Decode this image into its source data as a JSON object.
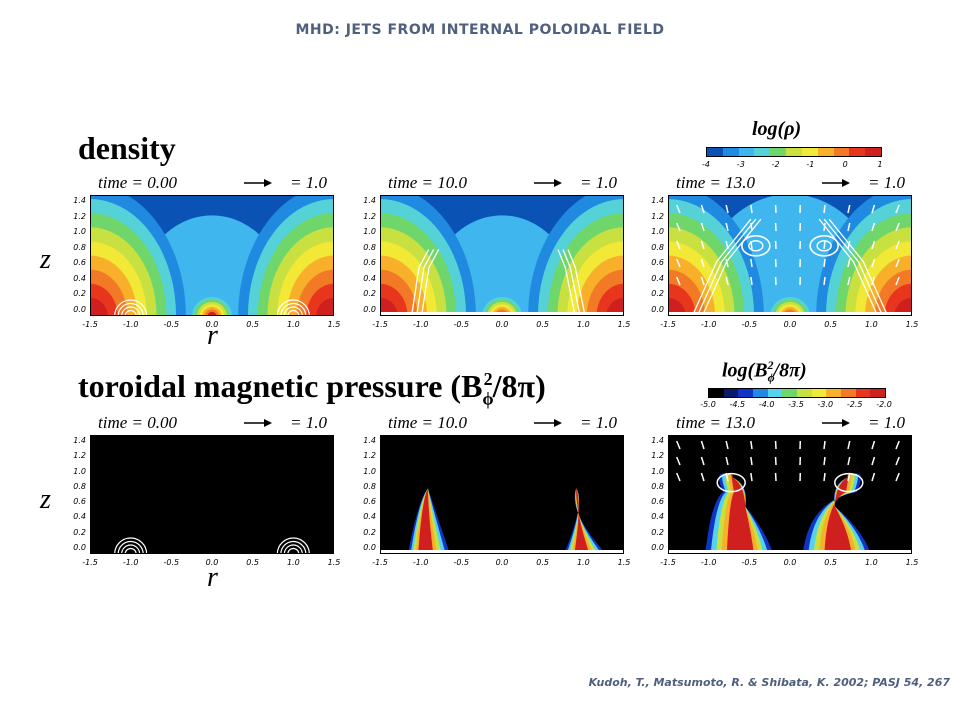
{
  "slide": {
    "title": "MHD: JETS FROM INTERNAL POLOIDAL FIELD",
    "citation": "Kudoh, T., Matsumoto, R. & Shibata, K. 2002; PASJ 54, 267"
  },
  "density": {
    "heading": "density",
    "colorbar": {
      "title": "log(ρ)",
      "ticks": [
        "-4",
        "-3",
        "-2",
        "-1",
        "0",
        "1"
      ],
      "colors": [
        "#0a52b3",
        "#1f8ae0",
        "#3fb6ee",
        "#55d2d8",
        "#6fd66c",
        "#c8e040",
        "#f2e836",
        "#f8b02a",
        "#f27a26",
        "#e8361e",
        "#cf1f1f"
      ]
    },
    "panels": [
      {
        "time": "time = 0.00",
        "scale": "= 1.0"
      },
      {
        "time": "time = 10.0",
        "scale": "= 1.0"
      },
      {
        "time": "time = 13.0",
        "scale": "= 1.0"
      }
    ]
  },
  "toroidal": {
    "heading": "toroidal magnetic pressure (B",
    "heading_sub": "ϕ",
    "heading_sup": "2",
    "heading_tail": "/8π)",
    "colorbar": {
      "title": "log(B",
      "title_sub": "ϕ",
      "title_sup": "2",
      "title_tail": "/8π)",
      "ticks": [
        "-5.0",
        "-4.5",
        "-4.0",
        "-3.5",
        "-3.0",
        "-2.5",
        "-2.0"
      ],
      "colors": [
        "#000000",
        "#0a1a6a",
        "#1034c8",
        "#1f8ae0",
        "#55d2ee",
        "#6fd66c",
        "#c8e040",
        "#f2e836",
        "#f8b02a",
        "#f27a26",
        "#e8361e",
        "#cf1f1f"
      ]
    },
    "panels": [
      {
        "time": "time = 0.00",
        "scale": "= 1.0"
      },
      {
        "time": "time = 10.0",
        "scale": "= 1.0"
      },
      {
        "time": "time = 13.0",
        "scale": "= 1.0"
      }
    ]
  },
  "axes": {
    "z_label": "z",
    "r_label": "r",
    "z_ticks": [
      "1.4",
      "1.2",
      "1.0",
      "0.8",
      "0.6",
      "0.4",
      "0.2",
      "0.0"
    ],
    "r_ticks": [
      "-1.5",
      "-1.0",
      "-0.5",
      "0.0",
      "0.5",
      "1.0",
      "1.5"
    ]
  }
}
